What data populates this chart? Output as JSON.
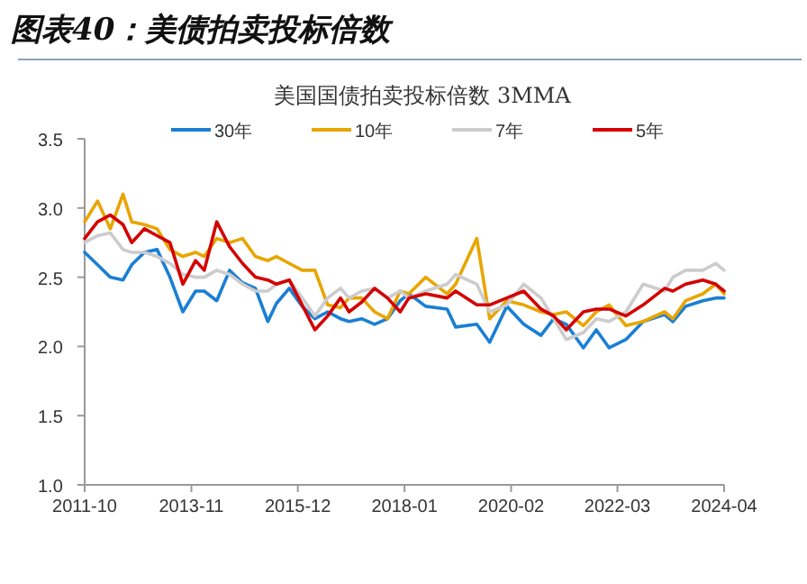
{
  "chart_data": {
    "type": "line",
    "title": "图表40：美债拍卖投标倍数",
    "subtitle": "美国国债拍卖投标倍数 3MMA",
    "x": [
      "2011-10",
      "2012-01",
      "2012-04",
      "2012-07",
      "2012-09",
      "2012-12",
      "2013-03",
      "2013-06",
      "2013-09",
      "2013-12",
      "2014-02",
      "2014-05",
      "2014-08",
      "2014-11",
      "2015-02",
      "2015-05",
      "2015-07",
      "2015-10",
      "2016-01",
      "2016-04",
      "2016-07",
      "2016-10",
      "2016-12",
      "2017-03",
      "2017-06",
      "2017-09",
      "2017-12",
      "2018-02",
      "2018-06",
      "2018-11",
      "2019-01",
      "2019-06",
      "2019-09",
      "2020-01",
      "2020-05",
      "2020-09",
      "2020-12",
      "2021-03",
      "2021-07",
      "2021-10",
      "2022-01",
      "2022-05",
      "2022-09",
      "2023-02",
      "2023-04",
      "2023-07",
      "2023-11",
      "2024-02",
      "2024-04"
    ],
    "series": [
      {
        "name": "30年",
        "color": "#1a7fd4",
        "values": [
          2.68,
          2.59,
          2.5,
          2.48,
          2.59,
          2.68,
          2.7,
          2.5,
          2.25,
          2.4,
          2.4,
          2.33,
          2.55,
          2.46,
          2.42,
          2.18,
          2.31,
          2.42,
          2.29,
          2.2,
          2.25,
          2.2,
          2.18,
          2.2,
          2.16,
          2.2,
          2.33,
          2.38,
          2.29,
          2.27,
          2.14,
          2.16,
          2.03,
          2.29,
          2.16,
          2.08,
          2.2,
          2.16,
          1.99,
          2.12,
          1.99,
          2.05,
          2.18,
          2.23,
          2.18,
          2.29,
          2.33,
          2.35,
          2.35
        ]
      },
      {
        "name": "10年",
        "color": "#e8a500",
        "values": [
          2.9,
          3.05,
          2.85,
          3.1,
          2.9,
          2.88,
          2.85,
          2.7,
          2.65,
          2.68,
          2.65,
          2.78,
          2.75,
          2.78,
          2.65,
          2.62,
          2.65,
          2.6,
          2.55,
          2.55,
          2.3,
          2.28,
          2.35,
          2.35,
          2.25,
          2.2,
          2.4,
          2.38,
          2.5,
          2.38,
          2.45,
          2.78,
          2.2,
          2.33,
          2.3,
          2.25,
          2.23,
          2.25,
          2.15,
          2.25,
          2.3,
          2.15,
          2.18,
          2.25,
          2.2,
          2.33,
          2.38,
          2.45,
          2.38
        ]
      },
      {
        "name": "7年",
        "color": "#cccccc",
        "values": [
          2.75,
          2.8,
          2.82,
          2.7,
          2.68,
          2.68,
          2.65,
          2.6,
          2.52,
          2.5,
          2.5,
          2.55,
          2.52,
          2.45,
          2.4,
          2.4,
          2.45,
          2.48,
          2.35,
          2.22,
          2.35,
          2.42,
          2.35,
          2.4,
          2.42,
          2.35,
          2.4,
          2.35,
          2.4,
          2.45,
          2.52,
          2.45,
          2.25,
          2.3,
          2.45,
          2.35,
          2.2,
          2.05,
          2.1,
          2.2,
          2.18,
          2.25,
          2.45,
          2.4,
          2.5,
          2.55,
          2.55,
          2.6,
          2.55
        ]
      },
      {
        "name": "5年",
        "color": "#d40000",
        "values": [
          2.78,
          2.9,
          2.95,
          2.88,
          2.75,
          2.85,
          2.8,
          2.75,
          2.45,
          2.62,
          2.55,
          2.9,
          2.72,
          2.6,
          2.5,
          2.48,
          2.45,
          2.48,
          2.3,
          2.12,
          2.22,
          2.35,
          2.25,
          2.32,
          2.42,
          2.35,
          2.25,
          2.35,
          2.38,
          2.35,
          2.4,
          2.3,
          2.3,
          2.35,
          2.4,
          2.27,
          2.22,
          2.12,
          2.25,
          2.27,
          2.27,
          2.22,
          2.3,
          2.42,
          2.4,
          2.45,
          2.48,
          2.45,
          2.4
        ]
      }
    ],
    "xlim": [
      "2011-10",
      "2024-04"
    ],
    "xticks": [
      {
        "value": "2011-10",
        "label": "2011-10"
      },
      {
        "value": "2013-11",
        "label": "2013-11"
      },
      {
        "value": "2015-12",
        "label": "2015-12"
      },
      {
        "value": "2018-01",
        "label": "2018-01"
      },
      {
        "value": "2020-02",
        "label": "2020-02"
      },
      {
        "value": "2022-03",
        "label": "2022-03"
      },
      {
        "value": "2024-04",
        "label": "2024-04"
      }
    ],
    "ylim": [
      1.0,
      3.5
    ],
    "yticks": [
      {
        "value": 1,
        "label": "1.0"
      },
      1.5,
      {
        "value": 2,
        "label": "2.0"
      },
      2.5,
      {
        "value": 3,
        "label": "3.0"
      },
      3.5
    ],
    "legend": "top",
    "line_style": "solid",
    "marker": "none"
  }
}
